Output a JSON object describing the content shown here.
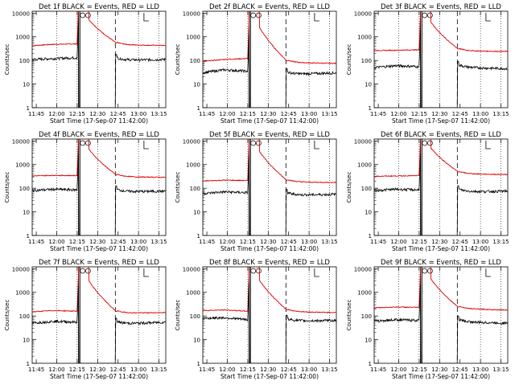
{
  "colors": {
    "events": "#000000",
    "lld": "#e00000",
    "axis": "#000000"
  },
  "common": {
    "ylabel": "Counts/sec",
    "xlabel": "Start Time (17-Sep-07 11:42:00)",
    "x_ticks": [
      "11:45",
      "12:00",
      "12:15",
      "12:30",
      "12:45",
      "13:00",
      "13:15"
    ],
    "y_ticks": [
      "1",
      "10",
      "100",
      "1000",
      "10000"
    ],
    "xlim": [
      "11:42",
      "13:20"
    ],
    "ylim": [
      1,
      12000
    ],
    "y_scale": "log",
    "dotted_lines": [
      "12:00",
      "12:15",
      "12:30",
      "13:00",
      "13:15"
    ],
    "dashed_line": "12:43"
  },
  "chart_data": [
    {
      "type": "line",
      "title": "Det 1f BLACK = Events, RED = LLD",
      "series": [
        {
          "name": "Events",
          "values": [
            110,
            120,
            130,
            100,
            110
          ]
        },
        {
          "name": "LLD",
          "values": [
            420,
            480,
            500,
            450,
            430
          ]
        }
      ]
    },
    {
      "type": "line",
      "title": "Det 2f BLACK = Events, RED = LLD",
      "series": [
        {
          "name": "Events",
          "values": [
            30,
            40,
            35,
            25,
            30
          ]
        },
        {
          "name": "LLD",
          "values": [
            90,
            110,
            120,
            80,
            75
          ]
        }
      ]
    },
    {
      "type": "line",
      "title": "Det 3f BLACK = Events, RED = LLD",
      "series": [
        {
          "name": "Events",
          "values": [
            50,
            60,
            55,
            50,
            45
          ]
        },
        {
          "name": "LLD",
          "values": [
            260,
            270,
            280,
            250,
            240
          ]
        }
      ]
    },
    {
      "type": "line",
      "title": "Det 4f BLACK = Events, RED = LLD",
      "series": [
        {
          "name": "Events",
          "values": [
            80,
            90,
            85,
            70,
            75
          ]
        },
        {
          "name": "LLD",
          "values": [
            330,
            350,
            340,
            300,
            290
          ]
        }
      ]
    },
    {
      "type": "line",
      "title": "Det 5f BLACK = Events, RED = LLD",
      "series": [
        {
          "name": "Events",
          "values": [
            60,
            70,
            65,
            50,
            55
          ]
        },
        {
          "name": "LLD",
          "values": [
            200,
            220,
            210,
            180,
            175
          ]
        }
      ]
    },
    {
      "type": "line",
      "title": "Det 6f BLACK = Events, RED = LLD",
      "series": [
        {
          "name": "Events",
          "values": [
            80,
            90,
            85,
            70,
            75
          ]
        },
        {
          "name": "LLD",
          "values": [
            320,
            330,
            340,
            400,
            380
          ]
        }
      ]
    },
    {
      "type": "line",
      "title": "Det 7f BLACK = Events, RED = LLD",
      "series": [
        {
          "name": "Events",
          "values": [
            50,
            60,
            55,
            45,
            55
          ]
        },
        {
          "name": "LLD",
          "values": [
            150,
            170,
            160,
            130,
            140
          ]
        }
      ]
    },
    {
      "type": "line",
      "title": "Det 8f BLACK = Events, RED = LLD",
      "series": [
        {
          "name": "Events",
          "values": [
            80,
            85,
            70,
            60,
            65
          ]
        },
        {
          "name": "LLD",
          "values": [
            170,
            180,
            160,
            150,
            140
          ]
        }
      ]
    },
    {
      "type": "line",
      "title": "Det 9f BLACK = Events, RED = LLD",
      "series": [
        {
          "name": "Events",
          "values": [
            60,
            70,
            65,
            55,
            50
          ]
        },
        {
          "name": "LLD",
          "values": [
            220,
            240,
            230,
            200,
            180
          ]
        }
      ]
    }
  ]
}
